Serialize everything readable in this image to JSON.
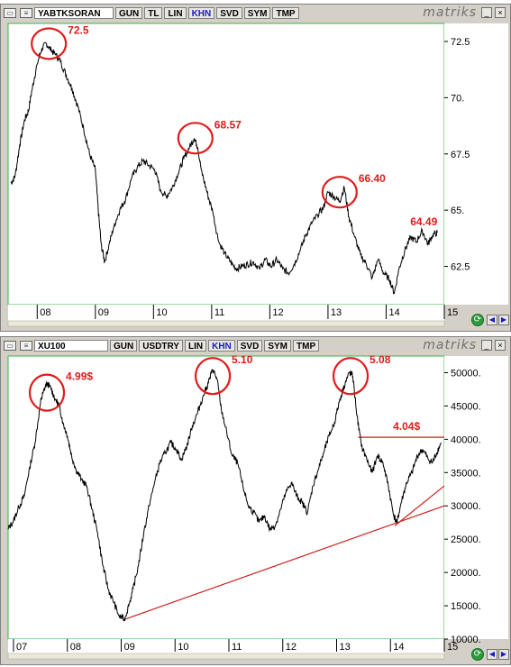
{
  "panels": [
    {
      "toolbar": {
        "symbol": "YABTKSORAN",
        "buttons": [
          "GUN",
          "TL",
          "LIN",
          "KHN",
          "SVD",
          "SYM",
          "TMP"
        ]
      },
      "brand": "matriks",
      "chart_data": {
        "type": "line",
        "x_ticks": [
          "08",
          "09",
          "10",
          "11",
          "12",
          "13",
          "14",
          "15"
        ],
        "y_ticks": [
          "72.5",
          "70.",
          "67.5",
          "65.",
          "62.5"
        ],
        "ylim": [
          60.8,
          73.3
        ],
        "series": [
          {
            "points": [
              [
                2007.55,
                66.2
              ],
              [
                2007.62,
                66.5
              ],
              [
                2007.7,
                67.9
              ],
              [
                2007.78,
                69.0
              ],
              [
                2007.85,
                69.4
              ],
              [
                2007.92,
                70.5
              ],
              [
                2008.0,
                71.5
              ],
              [
                2008.08,
                72.2
              ],
              [
                2008.16,
                72.4
              ],
              [
                2008.24,
                72.1
              ],
              [
                2008.32,
                71.9
              ],
              [
                2008.4,
                71.6
              ],
              [
                2008.5,
                71.0
              ],
              [
                2008.6,
                70.4
              ],
              [
                2008.7,
                69.6
              ],
              [
                2008.8,
                68.6
              ],
              [
                2008.9,
                67.5
              ],
              [
                2009.0,
                66.8
              ],
              [
                2009.05,
                65.0
              ],
              [
                2009.1,
                63.5
              ],
              [
                2009.16,
                62.7
              ],
              [
                2009.24,
                63.5
              ],
              [
                2009.32,
                64.3
              ],
              [
                2009.42,
                65.0
              ],
              [
                2009.52,
                65.5
              ],
              [
                2009.62,
                66.4
              ],
              [
                2009.72,
                66.9
              ],
              [
                2009.82,
                67.2
              ],
              [
                2009.92,
                67.0
              ],
              [
                2010.02,
                66.8
              ],
              [
                2010.12,
                65.9
              ],
              [
                2010.22,
                65.6
              ],
              [
                2010.32,
                66.0
              ],
              [
                2010.42,
                66.6
              ],
              [
                2010.52,
                67.3
              ],
              [
                2010.62,
                67.8
              ],
              [
                2010.7,
                68.2
              ],
              [
                2010.76,
                67.8
              ],
              [
                2010.82,
                66.8
              ],
              [
                2010.92,
                65.8
              ],
              [
                2011.02,
                64.9
              ],
              [
                2011.12,
                63.6
              ],
              [
                2011.22,
                63.1
              ],
              [
                2011.32,
                62.7
              ],
              [
                2011.42,
                62.4
              ],
              [
                2011.52,
                62.5
              ],
              [
                2011.62,
                62.6
              ],
              [
                2011.72,
                62.7
              ],
              [
                2011.82,
                62.4
              ],
              [
                2011.92,
                62.8
              ],
              [
                2012.02,
                62.5
              ],
              [
                2012.12,
                62.8
              ],
              [
                2012.22,
                62.4
              ],
              [
                2012.32,
                62.2
              ],
              [
                2012.42,
                62.6
              ],
              [
                2012.52,
                63.2
              ],
              [
                2012.62,
                63.9
              ],
              [
                2012.72,
                64.4
              ],
              [
                2012.82,
                64.8
              ],
              [
                2012.92,
                65.1
              ],
              [
                2013.0,
                65.8
              ],
              [
                2013.1,
                65.6
              ],
              [
                2013.2,
                65.4
              ],
              [
                2013.28,
                66.0
              ],
              [
                2013.36,
                64.7
              ],
              [
                2013.46,
                63.8
              ],
              [
                2013.56,
                63.0
              ],
              [
                2013.66,
                62.6
              ],
              [
                2013.76,
                62.0
              ],
              [
                2013.86,
                62.8
              ],
              [
                2013.96,
                62.2
              ],
              [
                2014.06,
                61.9
              ],
              [
                2014.14,
                61.3
              ],
              [
                2014.22,
                62.4
              ],
              [
                2014.32,
                63.2
              ],
              [
                2014.42,
                63.8
              ],
              [
                2014.52,
                63.6
              ],
              [
                2014.62,
                64.1
              ],
              [
                2014.72,
                63.5
              ],
              [
                2014.8,
                63.9
              ],
              [
                2014.88,
                64.0
              ]
            ]
          }
        ],
        "xlim": [
          2007.5,
          2015.0
        ],
        "annotations": [
          {
            "text": "72.5",
            "x": 2008.2,
            "y": 72.4,
            "circle": true
          },
          {
            "text": "68.57",
            "x": 2010.72,
            "y": 68.2,
            "circle": true
          },
          {
            "text": "66.40",
            "x": 2013.2,
            "y": 65.8,
            "circle": true
          },
          {
            "text": "64.49",
            "x": 2014.88,
            "y": 64.0,
            "circle": false
          }
        ]
      }
    },
    {
      "toolbar": {
        "symbol": "XU100",
        "buttons": [
          "GUN",
          "USDTRY",
          "LIN",
          "KHN",
          "SVD",
          "SYM",
          "TMP"
        ]
      },
      "brand": "matriks",
      "chart_data": {
        "type": "line",
        "x_ticks": [
          "07",
          "08",
          "09",
          "10",
          "11",
          "12",
          "13",
          "14",
          "15"
        ],
        "y_ticks": [
          "50000.",
          "45000.",
          "40000.",
          "35000.",
          "30000.",
          "25000.",
          "20000.",
          "15000.",
          "10000."
        ],
        "ylim": [
          10000,
          52500
        ],
        "xlim": [
          2006.9,
          2015.0
        ],
        "series": [
          {
            "points": [
              [
                2006.9,
                26500
              ],
              [
                2007.0,
                27800
              ],
              [
                2007.1,
                29800
              ],
              [
                2007.2,
                31500
              ],
              [
                2007.3,
                35800
              ],
              [
                2007.4,
                39500
              ],
              [
                2007.5,
                45500
              ],
              [
                2007.55,
                47000
              ],
              [
                2007.62,
                48500
              ],
              [
                2007.7,
                47500
              ],
              [
                2007.78,
                46000
              ],
              [
                2007.85,
                45000
              ],
              [
                2007.92,
                42500
              ],
              [
                2008.0,
                40500
              ],
              [
                2008.08,
                37500
              ],
              [
                2008.16,
                35500
              ],
              [
                2008.26,
                34000
              ],
              [
                2008.36,
                33000
              ],
              [
                2008.46,
                29500
              ],
              [
                2008.56,
                26000
              ],
              [
                2008.66,
                21000
              ],
              [
                2008.76,
                17500
              ],
              [
                2008.86,
                15500
              ],
              [
                2008.96,
                13500
              ],
              [
                2009.06,
                13000
              ],
              [
                2009.14,
                15000
              ],
              [
                2009.22,
                17500
              ],
              [
                2009.32,
                21000
              ],
              [
                2009.42,
                26000
              ],
              [
                2009.52,
                30000
              ],
              [
                2009.62,
                33500
              ],
              [
                2009.72,
                36500
              ],
              [
                2009.82,
                38000
              ],
              [
                2009.92,
                39500
              ],
              [
                2010.02,
                38500
              ],
              [
                2010.12,
                37000
              ],
              [
                2010.22,
                39000
              ],
              [
                2010.32,
                42000
              ],
              [
                2010.42,
                44000
              ],
              [
                2010.52,
                46500
              ],
              [
                2010.62,
                48500
              ],
              [
                2010.7,
                50500
              ],
              [
                2010.78,
                49000
              ],
              [
                2010.86,
                44500
              ],
              [
                2010.96,
                41000
              ],
              [
                2011.06,
                37500
              ],
              [
                2011.16,
                36500
              ],
              [
                2011.26,
                33000
              ],
              [
                2011.36,
                30000
              ],
              [
                2011.46,
                29000
              ],
              [
                2011.56,
                27500
              ],
              [
                2011.66,
                28500
              ],
              [
                2011.76,
                26500
              ],
              [
                2011.86,
                27000
              ],
              [
                2011.96,
                29500
              ],
              [
                2012.06,
                32000
              ],
              [
                2012.16,
                33500
              ],
              [
                2012.26,
                31500
              ],
              [
                2012.36,
                30500
              ],
              [
                2012.46,
                29000
              ],
              [
                2012.56,
                33000
              ],
              [
                2012.66,
                35500
              ],
              [
                2012.76,
                38000
              ],
              [
                2012.86,
                40500
              ],
              [
                2012.96,
                42500
              ],
              [
                2013.06,
                46000
              ],
              [
                2013.16,
                48500
              ],
              [
                2013.24,
                50000
              ],
              [
                2013.3,
                49500
              ],
              [
                2013.38,
                43500
              ],
              [
                2013.46,
                39000
              ],
              [
                2013.56,
                37000
              ],
              [
                2013.66,
                35000
              ],
              [
                2013.76,
                37500
              ],
              [
                2013.86,
                36500
              ],
              [
                2013.96,
                33000
              ],
              [
                2014.06,
                28500
              ],
              [
                2014.12,
                27500
              ],
              [
                2014.2,
                30500
              ],
              [
                2014.3,
                33500
              ],
              [
                2014.4,
                35000
              ],
              [
                2014.5,
                37500
              ],
              [
                2014.6,
                38500
              ],
              [
                2014.7,
                37000
              ],
              [
                2014.78,
                36500
              ],
              [
                2014.86,
                38000
              ],
              [
                2014.94,
                39500
              ]
            ]
          }
        ],
        "annotations": [
          {
            "text": "4.99$",
            "x": 2007.62,
            "y": 47000,
            "circle": true
          },
          {
            "text": "5.10",
            "x": 2010.7,
            "y": 49500,
            "circle": true
          },
          {
            "text": "5.08",
            "x": 2013.26,
            "y": 49500,
            "circle": true
          },
          {
            "text": "4.04$",
            "x": 2014.55,
            "y": 40300,
            "circle": false
          }
        ],
        "lines": [
          {
            "from": [
              2009.08,
              13000
            ],
            "to": [
              2015.0,
              30000
            ]
          },
          {
            "from": [
              2014.08,
              27000
            ],
            "to": [
              2015.0,
              33000
            ]
          },
          {
            "from": [
              2013.4,
              40300
            ],
            "to": [
              2015.0,
              40300
            ]
          }
        ]
      }
    }
  ]
}
